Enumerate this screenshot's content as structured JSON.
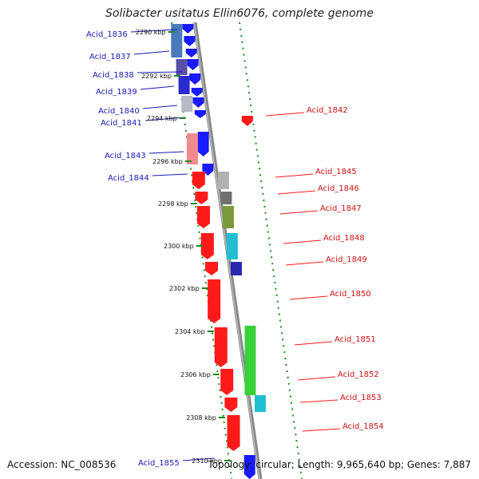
{
  "title": "Solibacter usitatus Ellin6076, complete genome",
  "accession_text": "Accession: NC_008536",
  "topology_text": "Topology: circular; Length: 9,965,640 bp; Genes: 7,887",
  "colors": {
    "forward_gene": "#1a1aff",
    "reverse_gene": "#ff1a1a",
    "forward_label": "#1a1ab0",
    "reverse_label": "#cc1111",
    "backbone": "#888888",
    "dotted_track": "#1a8a1a"
  },
  "ticks": [
    "2290 kbp",
    "2292 kbp",
    "2294 kbp",
    "2296 kbp",
    "2298 kbp",
    "2300 kbp",
    "2302 kbp",
    "2304 kbp",
    "2306 kbp",
    "2308 kbp",
    "2310 kbp"
  ],
  "left_genes": [
    "Acid_1836",
    "Acid_1837",
    "Acid_1838",
    "Acid_1839",
    "Acid_1840",
    "Acid_1841",
    "Acid_1843",
    "Acid_1844",
    "Acid_1855"
  ],
  "right_genes": [
    "Acid_1842",
    "Acid_1845",
    "Acid_1846",
    "Acid_1847",
    "Acid_1848",
    "Acid_1849",
    "Acid_1850",
    "Acid_1851",
    "Acid_1852",
    "Acid_1853",
    "Acid_1854"
  ]
}
